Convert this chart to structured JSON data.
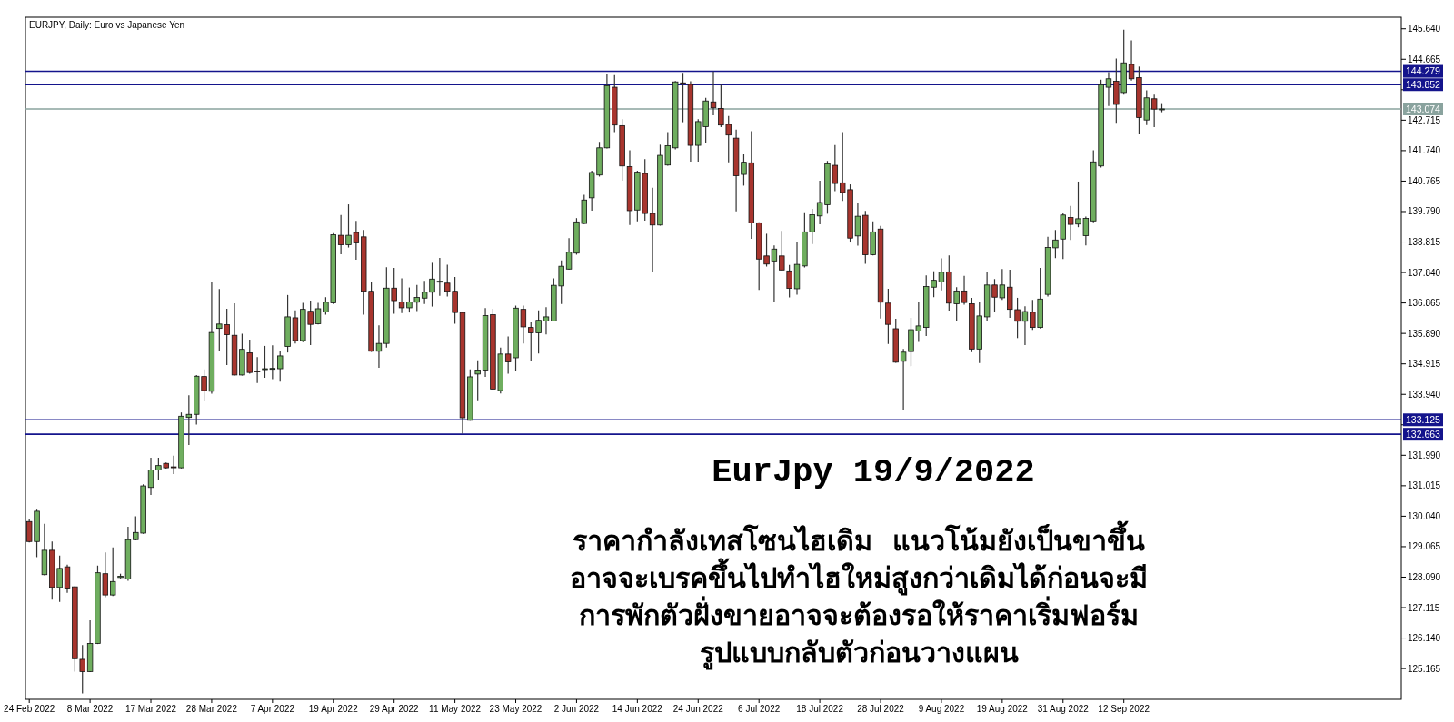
{
  "chart_data": {
    "type": "candlestick",
    "title": "EURJPY, Daily: Euro vs Japanese Yen",
    "categories": [
      "24 Feb 2022",
      null,
      null,
      null,
      null,
      null,
      null,
      null,
      "8 Mar 2022",
      null,
      null,
      null,
      null,
      null,
      null,
      null,
      "17 Mar 2022",
      null,
      null,
      null,
      null,
      null,
      null,
      null,
      "28 Mar 2022",
      null,
      null,
      null,
      null,
      null,
      null,
      null,
      "7 Apr 2022",
      null,
      null,
      null,
      null,
      null,
      null,
      null,
      "19 Apr 2022",
      null,
      null,
      null,
      null,
      null,
      null,
      null,
      "29 Apr 2022",
      null,
      null,
      null,
      null,
      null,
      null,
      null,
      "11 May 2022",
      null,
      null,
      null,
      null,
      null,
      null,
      null,
      "23 May 2022",
      null,
      null,
      null,
      null,
      null,
      null,
      null,
      "2 Jun 2022",
      null,
      null,
      null,
      null,
      null,
      null,
      null,
      "14 Jun 2022",
      null,
      null,
      null,
      null,
      null,
      null,
      null,
      "24 Jun 2022",
      null,
      null,
      null,
      null,
      null,
      null,
      null,
      "6 Jul 2022",
      null,
      null,
      null,
      null,
      null,
      null,
      null,
      "18 Jul 2022",
      null,
      null,
      null,
      null,
      null,
      null,
      null,
      "28 Jul 2022",
      null,
      null,
      null,
      null,
      null,
      null,
      null,
      "9 Aug 2022",
      null,
      null,
      null,
      null,
      null,
      null,
      null,
      "19 Aug 2022",
      null,
      null,
      null,
      null,
      null,
      null,
      null,
      "31 Aug 2022",
      null,
      null,
      null,
      null,
      null,
      null,
      null,
      "12 Sep 2022",
      null,
      null,
      null,
      null,
      null,
      null,
      null,
      null,
      null,
      null,
      null,
      null,
      null,
      null,
      null,
      null,
      null,
      null,
      null,
      null,
      null,
      null,
      null,
      null,
      null,
      null,
      null,
      null,
      null,
      null,
      null,
      null,
      null,
      null,
      null,
      null
    ],
    "ohlc": [
      [
        129.87,
        129.95,
        129.2,
        129.23
      ],
      [
        129.23,
        130.25,
        128.73,
        130.2
      ],
      [
        128.17,
        129.8,
        128.15,
        128.95
      ],
      [
        128.95,
        129.23,
        127.37,
        127.76
      ],
      [
        127.76,
        128.78,
        127.3,
        128.37
      ],
      [
        128.42,
        128.49,
        127.59,
        127.71
      ],
      [
        127.78,
        127.8,
        125.07,
        125.48
      ],
      [
        125.46,
        125.92,
        124.37,
        125.07
      ],
      [
        125.07,
        126.71,
        125.05,
        125.97
      ],
      [
        125.97,
        128.46,
        125.95,
        128.23
      ],
      [
        128.2,
        128.88,
        127.45,
        127.52
      ],
      [
        127.52,
        129.04,
        127.49,
        127.95
      ],
      [
        128.08,
        128.2,
        128.05,
        128.12
      ],
      [
        128.03,
        129.7,
        127.97,
        129.29
      ],
      [
        129.29,
        130.04,
        129.27,
        129.52
      ],
      [
        129.5,
        131.06,
        129.48,
        131.01
      ],
      [
        130.96,
        131.91,
        130.72,
        131.52
      ],
      [
        131.52,
        131.91,
        131.2,
        131.66
      ],
      [
        131.73,
        131.76,
        131.56,
        131.59
      ],
      [
        131.62,
        131.98,
        131.39,
        131.6
      ],
      [
        131.59,
        133.36,
        131.57,
        133.24
      ],
      [
        133.2,
        133.91,
        132.32,
        133.3
      ],
      [
        133.3,
        134.56,
        132.97,
        134.52
      ],
      [
        134.51,
        134.74,
        133.72,
        134.06
      ],
      [
        134.04,
        137.55,
        133.96,
        135.92
      ],
      [
        136.05,
        137.31,
        135.32,
        136.19
      ],
      [
        136.17,
        136.68,
        134.88,
        135.85
      ],
      [
        135.83,
        136.85,
        134.54,
        134.56
      ],
      [
        134.56,
        135.88,
        134.54,
        135.38
      ],
      [
        135.27,
        135.69,
        134.6,
        134.64
      ],
      [
        134.69,
        135.13,
        134.3,
        134.66
      ],
      [
        134.74,
        135.49,
        134.47,
        134.76
      ],
      [
        134.76,
        135.51,
        134.43,
        134.77
      ],
      [
        134.76,
        135.34,
        134.35,
        135.17
      ],
      [
        135.47,
        137.12,
        135.28,
        136.42
      ],
      [
        136.39,
        136.63,
        135.57,
        135.66
      ],
      [
        135.66,
        136.87,
        135.61,
        136.66
      ],
      [
        136.6,
        136.94,
        135.52,
        136.18
      ],
      [
        136.2,
        136.87,
        136.18,
        136.68
      ],
      [
        136.58,
        137.05,
        136.49,
        136.89
      ],
      [
        136.87,
        139.1,
        136.83,
        139.05
      ],
      [
        139.03,
        139.68,
        138.42,
        138.73
      ],
      [
        138.73,
        140.02,
        138.64,
        139.03
      ],
      [
        139.12,
        139.49,
        138.25,
        138.79
      ],
      [
        138.98,
        139.2,
        136.49,
        137.24
      ],
      [
        137.24,
        137.55,
        135.3,
        135.32
      ],
      [
        135.32,
        136.15,
        134.79,
        135.57
      ],
      [
        135.57,
        138.01,
        135.44,
        137.34
      ],
      [
        137.34,
        137.99,
        136.52,
        136.94
      ],
      [
        136.9,
        137.65,
        136.54,
        136.71
      ],
      [
        136.71,
        137.36,
        136.56,
        136.9
      ],
      [
        136.89,
        137.44,
        136.61,
        137.04
      ],
      [
        137.02,
        137.57,
        136.83,
        137.21
      ],
      [
        137.21,
        138.15,
        136.75,
        137.63
      ],
      [
        137.55,
        138.31,
        137.09,
        137.56
      ],
      [
        137.5,
        138.09,
        137.07,
        137.24
      ],
      [
        137.24,
        137.7,
        136.2,
        136.56
      ],
      [
        136.56,
        136.58,
        132.68,
        133.19
      ],
      [
        133.11,
        134.74,
        133.1,
        134.5
      ],
      [
        134.59,
        135.03,
        133.75,
        134.72
      ],
      [
        134.72,
        136.7,
        134.5,
        136.46
      ],
      [
        136.49,
        136.68,
        134.09,
        134.11
      ],
      [
        134.06,
        135.44,
        133.97,
        135.23
      ],
      [
        135.23,
        135.79,
        134.6,
        134.98
      ],
      [
        135.11,
        136.78,
        134.69,
        136.7
      ],
      [
        136.66,
        136.78,
        135.57,
        136.1
      ],
      [
        136.08,
        136.24,
        135.01,
        135.91
      ],
      [
        135.91,
        136.63,
        135.25,
        136.31
      ],
      [
        136.29,
        136.73,
        135.86,
        136.42
      ],
      [
        136.29,
        137.65,
        136.27,
        137.43
      ],
      [
        137.41,
        138.23,
        136.83,
        138.04
      ],
      [
        137.95,
        138.94,
        137.93,
        138.49
      ],
      [
        138.46,
        139.58,
        138.41,
        139.46
      ],
      [
        139.41,
        140.33,
        139.39,
        140.16
      ],
      [
        140.23,
        141.1,
        139.82,
        141.04
      ],
      [
        140.96,
        142.02,
        140.91,
        141.83
      ],
      [
        141.83,
        144.2,
        141.81,
        143.82
      ],
      [
        143.77,
        144.16,
        142.33,
        142.56
      ],
      [
        142.54,
        142.75,
        140.78,
        141.25
      ],
      [
        141.23,
        141.75,
        139.36,
        139.82
      ],
      [
        139.84,
        141.1,
        139.48,
        141.05
      ],
      [
        141.01,
        141.47,
        139.5,
        139.73
      ],
      [
        139.73,
        140.55,
        137.84,
        139.36
      ],
      [
        139.36,
        141.93,
        139.34,
        141.59
      ],
      [
        141.28,
        142.33,
        141.26,
        141.9
      ],
      [
        141.83,
        143.97,
        141.78,
        143.94
      ],
      [
        143.91,
        144.23,
        142.65,
        143.9
      ],
      [
        143.86,
        143.96,
        141.39,
        141.91
      ],
      [
        141.91,
        142.75,
        141.39,
        142.67
      ],
      [
        142.51,
        143.43,
        142.0,
        143.33
      ],
      [
        143.3,
        144.27,
        142.87,
        143.11
      ],
      [
        143.09,
        143.85,
        142.49,
        142.56
      ],
      [
        142.58,
        142.85,
        141.37,
        142.24
      ],
      [
        142.14,
        142.41,
        139.8,
        140.94
      ],
      [
        140.98,
        141.62,
        140.62,
        141.37
      ],
      [
        141.35,
        142.36,
        138.92,
        139.43
      ],
      [
        139.43,
        139.45,
        137.28,
        138.27
      ],
      [
        138.37,
        139.08,
        138.03,
        138.11
      ],
      [
        138.21,
        138.71,
        136.89,
        138.59
      ],
      [
        138.37,
        139.17,
        137.91,
        137.92
      ],
      [
        137.89,
        138.08,
        137.04,
        137.33
      ],
      [
        137.32,
        138.8,
        137.13,
        138.1
      ],
      [
        138.05,
        139.77,
        138.0,
        139.14
      ],
      [
        139.14,
        139.88,
        138.75,
        139.69
      ],
      [
        139.65,
        140.78,
        139.38,
        140.08
      ],
      [
        140.01,
        141.41,
        139.72,
        141.32
      ],
      [
        141.27,
        141.92,
        140.44,
        140.69
      ],
      [
        140.71,
        142.33,
        140.13,
        140.4
      ],
      [
        140.49,
        140.66,
        138.8,
        138.94
      ],
      [
        139.01,
        140.06,
        138.7,
        139.64
      ],
      [
        139.67,
        139.81,
        138.12,
        138.41
      ],
      [
        138.41,
        139.48,
        138.39,
        139.14
      ],
      [
        139.23,
        139.33,
        136.37,
        136.89
      ],
      [
        136.86,
        137.32,
        135.55,
        136.18
      ],
      [
        136.04,
        136.36,
        134.95,
        134.97
      ],
      [
        135.0,
        135.39,
        133.42,
        135.29
      ],
      [
        135.31,
        136.39,
        134.84,
        136.01
      ],
      [
        135.97,
        136.91,
        135.62,
        136.13
      ],
      [
        136.08,
        137.75,
        135.81,
        137.39
      ],
      [
        137.37,
        137.88,
        137.05,
        137.59
      ],
      [
        137.54,
        138.29,
        137.27,
        137.85
      ],
      [
        137.86,
        138.39,
        136.62,
        136.86
      ],
      [
        136.84,
        137.37,
        136.3,
        137.25
      ],
      [
        137.25,
        137.73,
        136.81,
        136.88
      ],
      [
        136.84,
        137.03,
        135.29,
        135.39
      ],
      [
        135.39,
        136.91,
        134.94,
        136.45
      ],
      [
        136.42,
        137.86,
        136.3,
        137.44
      ],
      [
        137.44,
        137.63,
        136.59,
        137.05
      ],
      [
        137.03,
        137.95,
        136.96,
        137.44
      ],
      [
        137.37,
        137.93,
        136.39,
        136.66
      ],
      [
        136.65,
        137.03,
        135.74,
        136.28
      ],
      [
        136.28,
        136.76,
        135.52,
        136.59
      ],
      [
        136.57,
        136.96,
        136.0,
        136.08
      ],
      [
        136.08,
        137.99,
        136.05,
        136.99
      ],
      [
        137.14,
        138.98,
        137.07,
        138.64
      ],
      [
        138.63,
        139.2,
        138.3,
        138.88
      ],
      [
        138.91,
        139.75,
        138.27,
        139.68
      ],
      [
        139.6,
        139.97,
        138.88,
        139.38
      ],
      [
        139.39,
        140.75,
        139.29,
        139.56
      ],
      [
        139.02,
        139.63,
        138.71,
        139.57
      ],
      [
        139.49,
        141.75,
        139.45,
        141.38
      ],
      [
        141.25,
        144.01,
        141.2,
        143.85
      ],
      [
        143.77,
        144.25,
        143.17,
        144.04
      ],
      [
        143.96,
        144.69,
        142.63,
        143.22
      ],
      [
        143.6,
        145.61,
        143.53,
        144.55
      ],
      [
        144.5,
        145.27,
        143.98,
        144.04
      ],
      [
        144.08,
        144.43,
        142.29,
        142.8
      ],
      [
        142.72,
        143.67,
        142.56,
        143.43
      ],
      [
        143.4,
        143.53,
        142.49,
        143.07
      ],
      [
        143.06,
        143.26,
        142.97,
        143.074
      ],
      null,
      null,
      null,
      null,
      null,
      null,
      null,
      null,
      null,
      null,
      null,
      null,
      null,
      null,
      null,
      null,
      null,
      null,
      null,
      null,
      null,
      null,
      null,
      null,
      null,
      null,
      null,
      null,
      null,
      null,
      null
    ],
    "colors": [
      "#a8352e",
      "#6fae5f",
      "#6fae5f",
      "#a8352e",
      "#6fae5f",
      "#a8352e",
      "#a8352e",
      "#a8352e",
      "#6fae5f",
      "#6fae5f",
      "#a8352e",
      "#6fae5f",
      "#6fae5f",
      "#6fae5f",
      "#6fae5f",
      "#6fae5f",
      "#6fae5f",
      "#6fae5f",
      "#a8352e",
      "#a8352e",
      "#6fae5f",
      "#6fae5f",
      "#6fae5f",
      "#a8352e",
      "#6fae5f",
      "#6fae5f",
      "#a8352e",
      "#a8352e",
      "#6fae5f",
      "#a8352e",
      "#a8352e",
      "#6fae5f",
      "#6fae5f",
      "#6fae5f",
      "#6fae5f",
      "#a8352e",
      "#6fae5f",
      "#a8352e",
      "#6fae5f",
      "#6fae5f",
      "#6fae5f",
      "#a8352e",
      "#6fae5f",
      "#a8352e",
      "#a8352e",
      "#a8352e",
      "#6fae5f",
      "#6fae5f",
      "#a8352e",
      "#a8352e",
      "#6fae5f",
      "#6fae5f",
      "#6fae5f",
      "#6fae5f",
      "#6fae5f",
      "#a8352e",
      "#a8352e",
      "#a8352e",
      "#6fae5f",
      "#6fae5f",
      "#6fae5f",
      "#a8352e",
      "#6fae5f",
      "#a8352e",
      "#6fae5f",
      "#a8352e",
      "#a8352e",
      "#6fae5f",
      "#6fae5f",
      "#6fae5f",
      "#6fae5f",
      "#6fae5f",
      "#6fae5f",
      "#6fae5f",
      "#6fae5f",
      "#6fae5f",
      "#6fae5f",
      "#a8352e",
      "#a8352e",
      "#a8352e",
      "#6fae5f",
      "#a8352e",
      "#a8352e",
      "#6fae5f",
      "#6fae5f",
      "#6fae5f",
      "#a8352e",
      "#a8352e",
      "#6fae5f",
      "#6fae5f",
      "#a8352e",
      "#a8352e",
      "#a8352e",
      "#a8352e",
      "#6fae5f",
      "#a8352e",
      "#a8352e",
      "#a8352e",
      "#6fae5f",
      "#a8352e",
      "#a8352e",
      "#6fae5f",
      "#6fae5f",
      "#6fae5f",
      "#6fae5f",
      "#6fae5f",
      "#a8352e",
      "#a8352e",
      "#a8352e",
      "#6fae5f",
      "#a8352e",
      "#6fae5f",
      "#a8352e",
      "#a8352e",
      "#a8352e",
      "#6fae5f",
      "#6fae5f",
      "#6fae5f",
      "#6fae5f",
      "#6fae5f",
      "#6fae5f",
      "#a8352e",
      "#6fae5f",
      "#a8352e",
      "#a8352e",
      "#6fae5f",
      "#6fae5f",
      "#a8352e",
      "#6fae5f",
      "#a8352e",
      "#a8352e",
      "#6fae5f",
      "#a8352e",
      "#6fae5f",
      "#6fae5f",
      "#6fae5f",
      "#6fae5f",
      "#a8352e",
      "#6fae5f",
      "#6fae5f",
      "#6fae5f",
      "#6fae5f",
      "#6fae5f",
      "#a8352e",
      "#6fae5f",
      "#a8352e",
      "#a8352e",
      "#6fae5f",
      "#a8352e",
      "#6fae5f",
      null,
      null,
      null,
      null,
      null,
      null,
      null,
      null,
      null,
      null,
      null,
      null,
      null,
      null,
      null,
      null,
      null,
      null,
      null,
      null,
      null,
      null,
      null,
      null,
      null,
      null,
      null,
      null,
      null,
      null,
      null
    ],
    "ylim": [
      124.18,
      146.01
    ],
    "yticks": [
      {
        "value": 145.64,
        "label": "145.640"
      },
      {
        "value": 144.665,
        "label": "144.665"
      },
      {
        "value": 143.69,
        "label": null
      },
      {
        "value": 142.715,
        "label": "142.715"
      },
      {
        "value": 141.74,
        "label": "141.740"
      },
      {
        "value": 140.765,
        "label": "140.765"
      },
      {
        "value": 139.79,
        "label": "139.790"
      },
      {
        "value": 138.815,
        "label": "138.815"
      },
      {
        "value": 137.84,
        "label": "137.840"
      },
      {
        "value": 136.865,
        "label": "136.865"
      },
      {
        "value": 135.89,
        "label": "135.890"
      },
      {
        "value": 134.915,
        "label": "134.915"
      },
      {
        "value": 133.94,
        "label": "133.940"
      },
      {
        "value": 132.965,
        "label": null
      },
      {
        "value": 131.99,
        "label": "131.990"
      },
      {
        "value": 131.015,
        "label": "131.015"
      },
      {
        "value": 130.04,
        "label": "130.040"
      },
      {
        "value": 129.065,
        "label": "129.065"
      },
      {
        "value": 128.09,
        "label": "128.090"
      },
      {
        "value": 127.115,
        "label": "127.115"
      },
      {
        "value": 126.14,
        "label": "126.140"
      },
      {
        "value": 125.165,
        "label": "125.165"
      }
    ],
    "ref_lines": [
      {
        "axis": "y",
        "value": 144.279,
        "label": "144.279",
        "color": "#14148c"
      },
      {
        "axis": "y",
        "value": 143.852,
        "label": "143.852",
        "color": "#14148c"
      },
      {
        "axis": "y",
        "value": 143.074,
        "label": "143.074",
        "color": "#8aa39e"
      },
      {
        "axis": "y",
        "value": 133.125,
        "label": "133.125",
        "color": "#14148c"
      },
      {
        "axis": "y",
        "value": 132.663,
        "label": "132.663",
        "color": "#14148c"
      }
    ],
    "annotations": [
      "EurJpy 19/9/2022",
      "ราคากำลังเทสโซนไฮเดิม  แนวโน้มยังเป็นขาขึ้น",
      "อาจจะเบรคขึ้นไปทำไฮใหม่สูงกว่าเดิมได้ก่อนจะมี",
      "การพักตัวฝั่งขายอาจจะต้องรอให้ราคาเริ่มฟอร์ม",
      "รูปแบบกลับตัวก่อนวางแผน"
    ]
  }
}
